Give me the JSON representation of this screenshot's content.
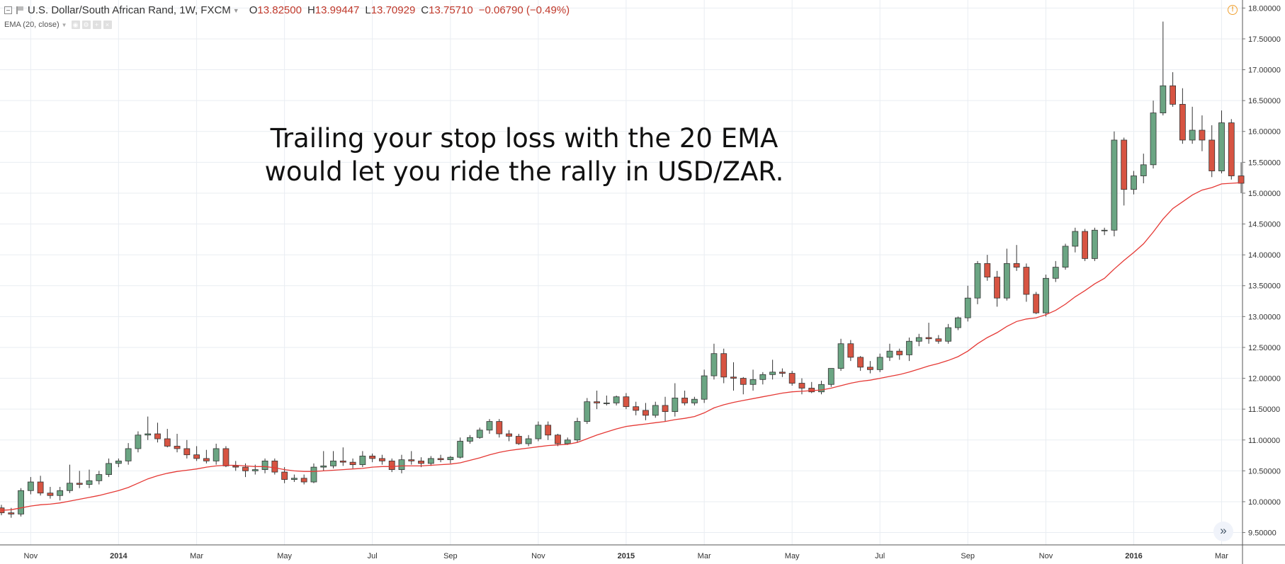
{
  "header": {
    "symbol": "U.S. Dollar/South African Rand, 1W, FXCM",
    "open_label": "O",
    "open": "13.82500",
    "high_label": "H",
    "high": "13.99447",
    "low_label": "L",
    "low": "13.70929",
    "close_label": "C",
    "close": "13.75710",
    "change": "−0.06790 (−0.49%)",
    "indicator": "EMA (20, close)"
  },
  "annotation": {
    "line1": "Trailing your stop loss with the 20 EMA",
    "line2": "would let you ride the rally in USD/ZAR."
  },
  "colors": {
    "up": "#6ba583",
    "down": "#d75442",
    "ema": "#e53935",
    "grid": "#e9edf2"
  },
  "chart_data": {
    "type": "candlestick",
    "y_ticks": [
      "9.50000",
      "10.00000",
      "10.50000",
      "11.00000",
      "11.50000",
      "12.00000",
      "12.50000",
      "13.00000",
      "13.50000",
      "14.00000",
      "14.50000",
      "15.00000",
      "15.50000",
      "16.00000",
      "16.50000",
      "17.00000",
      "17.50000",
      "18.00000"
    ],
    "ylim": [
      9.3,
      18.13
    ],
    "x_labels": [
      {
        "label": "Nov",
        "bar": 3
      },
      {
        "label": "2014",
        "bar": 12
      },
      {
        "label": "Mar",
        "bar": 20
      },
      {
        "label": "May",
        "bar": 29
      },
      {
        "label": "Jul",
        "bar": 38
      },
      {
        "label": "Sep",
        "bar": 46
      },
      {
        "label": "Nov",
        "bar": 55
      },
      {
        "label": "2015",
        "bar": 64
      },
      {
        "label": "Mar",
        "bar": 72
      },
      {
        "label": "May",
        "bar": 81
      },
      {
        "label": "Jul",
        "bar": 90
      },
      {
        "label": "Sep",
        "bar": 99
      },
      {
        "label": "Nov",
        "bar": 107
      },
      {
        "label": "2016",
        "bar": 116
      },
      {
        "label": "Mar",
        "bar": 125
      }
    ],
    "bars_ohlc": [
      [
        9.9,
        9.95,
        9.78,
        9.82
      ],
      [
        9.82,
        9.9,
        9.74,
        9.8
      ],
      [
        9.8,
        10.22,
        9.76,
        10.18
      ],
      [
        10.18,
        10.4,
        10.12,
        10.32
      ],
      [
        10.32,
        10.42,
        10.1,
        10.14
      ],
      [
        10.14,
        10.24,
        10.05,
        10.1
      ],
      [
        10.1,
        10.24,
        10.02,
        10.18
      ],
      [
        10.18,
        10.6,
        10.14,
        10.3
      ],
      [
        10.3,
        10.5,
        10.22,
        10.28
      ],
      [
        10.28,
        10.52,
        10.22,
        10.34
      ],
      [
        10.34,
        10.5,
        10.28,
        10.44
      ],
      [
        10.44,
        10.7,
        10.4,
        10.62
      ],
      [
        10.62,
        10.7,
        10.56,
        10.66
      ],
      [
        10.66,
        10.95,
        10.6,
        10.86
      ],
      [
        10.86,
        11.14,
        10.8,
        11.08
      ],
      [
        11.08,
        11.38,
        11.0,
        11.1
      ],
      [
        11.1,
        11.28,
        10.96,
        11.02
      ],
      [
        11.02,
        11.18,
        10.88,
        10.9
      ],
      [
        10.9,
        11.1,
        10.8,
        10.86
      ],
      [
        10.86,
        11.0,
        10.7,
        10.76
      ],
      [
        10.76,
        10.9,
        10.66,
        10.7
      ],
      [
        10.7,
        10.84,
        10.62,
        10.66
      ],
      [
        10.66,
        10.94,
        10.6,
        10.86
      ],
      [
        10.86,
        10.9,
        10.56,
        10.58
      ],
      [
        10.58,
        10.66,
        10.5,
        10.56
      ],
      [
        10.56,
        10.62,
        10.4,
        10.5
      ],
      [
        10.5,
        10.6,
        10.44,
        10.52
      ],
      [
        10.52,
        10.7,
        10.46,
        10.66
      ],
      [
        10.66,
        10.7,
        10.44,
        10.48
      ],
      [
        10.48,
        10.56,
        10.3,
        10.36
      ],
      [
        10.36,
        10.44,
        10.32,
        10.38
      ],
      [
        10.38,
        10.44,
        10.28,
        10.32
      ],
      [
        10.32,
        10.62,
        10.3,
        10.56
      ],
      [
        10.56,
        10.82,
        10.5,
        10.58
      ],
      [
        10.58,
        10.82,
        10.54,
        10.66
      ],
      [
        10.66,
        10.88,
        10.58,
        10.64
      ],
      [
        10.64,
        10.7,
        10.54,
        10.6
      ],
      [
        10.6,
        10.82,
        10.56,
        10.74
      ],
      [
        10.74,
        10.78,
        10.64,
        10.7
      ],
      [
        10.7,
        10.76,
        10.6,
        10.66
      ],
      [
        10.66,
        10.7,
        10.48,
        10.52
      ],
      [
        10.52,
        10.76,
        10.46,
        10.68
      ],
      [
        10.68,
        10.82,
        10.6,
        10.66
      ],
      [
        10.66,
        10.72,
        10.56,
        10.62
      ],
      [
        10.62,
        10.74,
        10.58,
        10.7
      ],
      [
        10.7,
        10.76,
        10.64,
        10.68
      ],
      [
        10.68,
        10.74,
        10.62,
        10.72
      ],
      [
        10.72,
        11.04,
        10.7,
        10.98
      ],
      [
        10.98,
        11.08,
        10.94,
        11.04
      ],
      [
        11.04,
        11.2,
        11.02,
        11.16
      ],
      [
        11.16,
        11.34,
        11.1,
        11.3
      ],
      [
        11.3,
        11.34,
        11.04,
        11.1
      ],
      [
        11.1,
        11.16,
        10.98,
        11.06
      ],
      [
        11.06,
        11.1,
        10.92,
        10.94
      ],
      [
        10.94,
        11.08,
        10.9,
        11.02
      ],
      [
        11.02,
        11.3,
        10.98,
        11.24
      ],
      [
        11.24,
        11.3,
        11.0,
        11.08
      ],
      [
        11.08,
        11.1,
        10.9,
        10.94
      ],
      [
        10.94,
        11.04,
        10.92,
        11.0
      ],
      [
        11.0,
        11.36,
        10.96,
        11.3
      ],
      [
        11.3,
        11.68,
        11.26,
        11.62
      ],
      [
        11.62,
        11.8,
        11.5,
        11.6
      ],
      [
        11.6,
        11.72,
        11.56,
        11.6
      ],
      [
        11.6,
        11.72,
        11.56,
        11.7
      ],
      [
        11.7,
        11.76,
        11.5,
        11.54
      ],
      [
        11.54,
        11.62,
        11.4,
        11.48
      ],
      [
        11.48,
        11.6,
        11.32,
        11.4
      ],
      [
        11.4,
        11.62,
        11.36,
        11.56
      ],
      [
        11.56,
        11.7,
        11.3,
        11.46
      ],
      [
        11.46,
        11.92,
        11.38,
        11.68
      ],
      [
        11.68,
        11.8,
        11.56,
        11.6
      ],
      [
        11.6,
        11.7,
        11.56,
        11.66
      ],
      [
        11.66,
        12.14,
        11.6,
        12.04
      ],
      [
        12.04,
        12.56,
        11.98,
        12.4
      ],
      [
        12.4,
        12.48,
        11.92,
        12.02
      ],
      [
        12.02,
        12.26,
        11.8,
        12.0
      ],
      [
        12.0,
        12.02,
        11.74,
        11.9
      ],
      [
        11.9,
        12.14,
        11.8,
        11.98
      ],
      [
        11.98,
        12.1,
        11.9,
        12.06
      ],
      [
        12.06,
        12.3,
        11.98,
        12.1
      ],
      [
        12.1,
        12.16,
        12.02,
        12.08
      ],
      [
        12.08,
        12.12,
        11.88,
        11.92
      ],
      [
        11.92,
        12.0,
        11.74,
        11.84
      ],
      [
        11.84,
        11.94,
        11.76,
        11.78
      ],
      [
        11.78,
        11.96,
        11.74,
        11.9
      ],
      [
        11.9,
        12.16,
        11.86,
        12.16
      ],
      [
        12.16,
        12.64,
        12.12,
        12.56
      ],
      [
        12.56,
        12.62,
        12.28,
        12.34
      ],
      [
        12.34,
        12.36,
        12.12,
        12.18
      ],
      [
        12.18,
        12.28,
        12.08,
        12.14
      ],
      [
        12.14,
        12.4,
        12.1,
        12.34
      ],
      [
        12.34,
        12.56,
        12.28,
        12.44
      ],
      [
        12.44,
        12.48,
        12.3,
        12.38
      ],
      [
        12.38,
        12.66,
        12.28,
        12.6
      ],
      [
        12.6,
        12.72,
        12.52,
        12.66
      ],
      [
        12.66,
        12.9,
        12.56,
        12.64
      ],
      [
        12.64,
        12.7,
        12.56,
        12.6
      ],
      [
        12.6,
        12.88,
        12.56,
        12.82
      ],
      [
        12.82,
        13.0,
        12.78,
        12.98
      ],
      [
        12.98,
        13.5,
        12.92,
        13.3
      ],
      [
        13.3,
        13.9,
        13.2,
        13.86
      ],
      [
        13.86,
        14.0,
        13.58,
        13.64
      ],
      [
        13.64,
        13.74,
        13.16,
        13.3
      ],
      [
        13.3,
        14.1,
        13.26,
        13.86
      ],
      [
        13.86,
        14.16,
        13.74,
        13.8
      ],
      [
        13.8,
        13.86,
        13.24,
        13.36
      ],
      [
        13.36,
        13.4,
        13.04,
        13.06
      ],
      [
        13.06,
        13.68,
        13.0,
        13.62
      ],
      [
        13.62,
        13.9,
        13.56,
        13.8
      ],
      [
        13.8,
        14.18,
        13.76,
        14.14
      ],
      [
        14.14,
        14.44,
        14.04,
        14.38
      ],
      [
        14.38,
        14.42,
        13.9,
        13.94
      ],
      [
        13.94,
        14.44,
        13.9,
        14.4
      ],
      [
        14.4,
        14.44,
        14.32,
        14.4
      ],
      [
        14.4,
        16.0,
        14.3,
        15.86
      ],
      [
        15.86,
        15.9,
        14.8,
        15.06
      ],
      [
        15.06,
        15.36,
        14.98,
        15.28
      ],
      [
        15.28,
        15.64,
        15.16,
        15.46
      ],
      [
        15.46,
        16.5,
        15.4,
        16.3
      ],
      [
        16.3,
        17.78,
        16.26,
        16.74
      ],
      [
        16.74,
        16.96,
        16.4,
        16.44
      ],
      [
        16.44,
        16.7,
        15.8,
        15.86
      ],
      [
        15.86,
        16.4,
        15.8,
        16.02
      ],
      [
        16.02,
        16.26,
        15.68,
        15.86
      ],
      [
        15.86,
        16.1,
        15.26,
        15.36
      ],
      [
        15.36,
        16.34,
        15.32,
        16.14
      ],
      [
        16.14,
        16.2,
        15.22,
        15.28
      ],
      [
        15.28,
        15.5,
        15.0,
        15.16
      ]
    ],
    "ema": [
      9.86,
      9.87,
      9.9,
      9.93,
      9.95,
      9.96,
      9.98,
      10.01,
      10.04,
      10.07,
      10.1,
      10.14,
      10.18,
      10.23,
      10.3,
      10.37,
      10.42,
      10.46,
      10.49,
      10.51,
      10.53,
      10.56,
      10.58,
      10.59,
      10.59,
      10.58,
      10.57,
      10.57,
      10.55,
      10.52,
      10.5,
      10.49,
      10.49,
      10.5,
      10.51,
      10.52,
      10.53,
      10.54,
      10.56,
      10.57,
      10.57,
      10.58,
      10.58,
      10.58,
      10.59,
      10.6,
      10.61,
      10.63,
      10.67,
      10.71,
      10.76,
      10.8,
      10.83,
      10.85,
      10.87,
      10.89,
      10.91,
      10.92,
      10.93,
      10.96,
      11.02,
      11.08,
      11.13,
      11.18,
      11.22,
      11.24,
      11.26,
      11.28,
      11.3,
      11.33,
      11.35,
      11.38,
      11.44,
      11.52,
      11.57,
      11.61,
      11.64,
      11.67,
      11.7,
      11.73,
      11.76,
      11.78,
      11.79,
      11.8,
      11.81,
      11.84,
      11.88,
      11.92,
      11.95,
      11.97,
      12.0,
      12.03,
      12.06,
      12.1,
      12.15,
      12.2,
      12.24,
      12.29,
      12.35,
      12.44,
      12.56,
      12.66,
      12.74,
      12.84,
      12.92,
      12.96,
      12.98,
      13.03,
      13.1,
      13.2,
      13.32,
      13.42,
      13.53,
      13.62,
      13.77,
      13.91,
      14.04,
      14.18,
      14.37,
      14.58,
      14.75,
      14.86,
      14.97,
      15.05,
      15.09,
      15.15,
      15.16,
      15.17
    ]
  }
}
